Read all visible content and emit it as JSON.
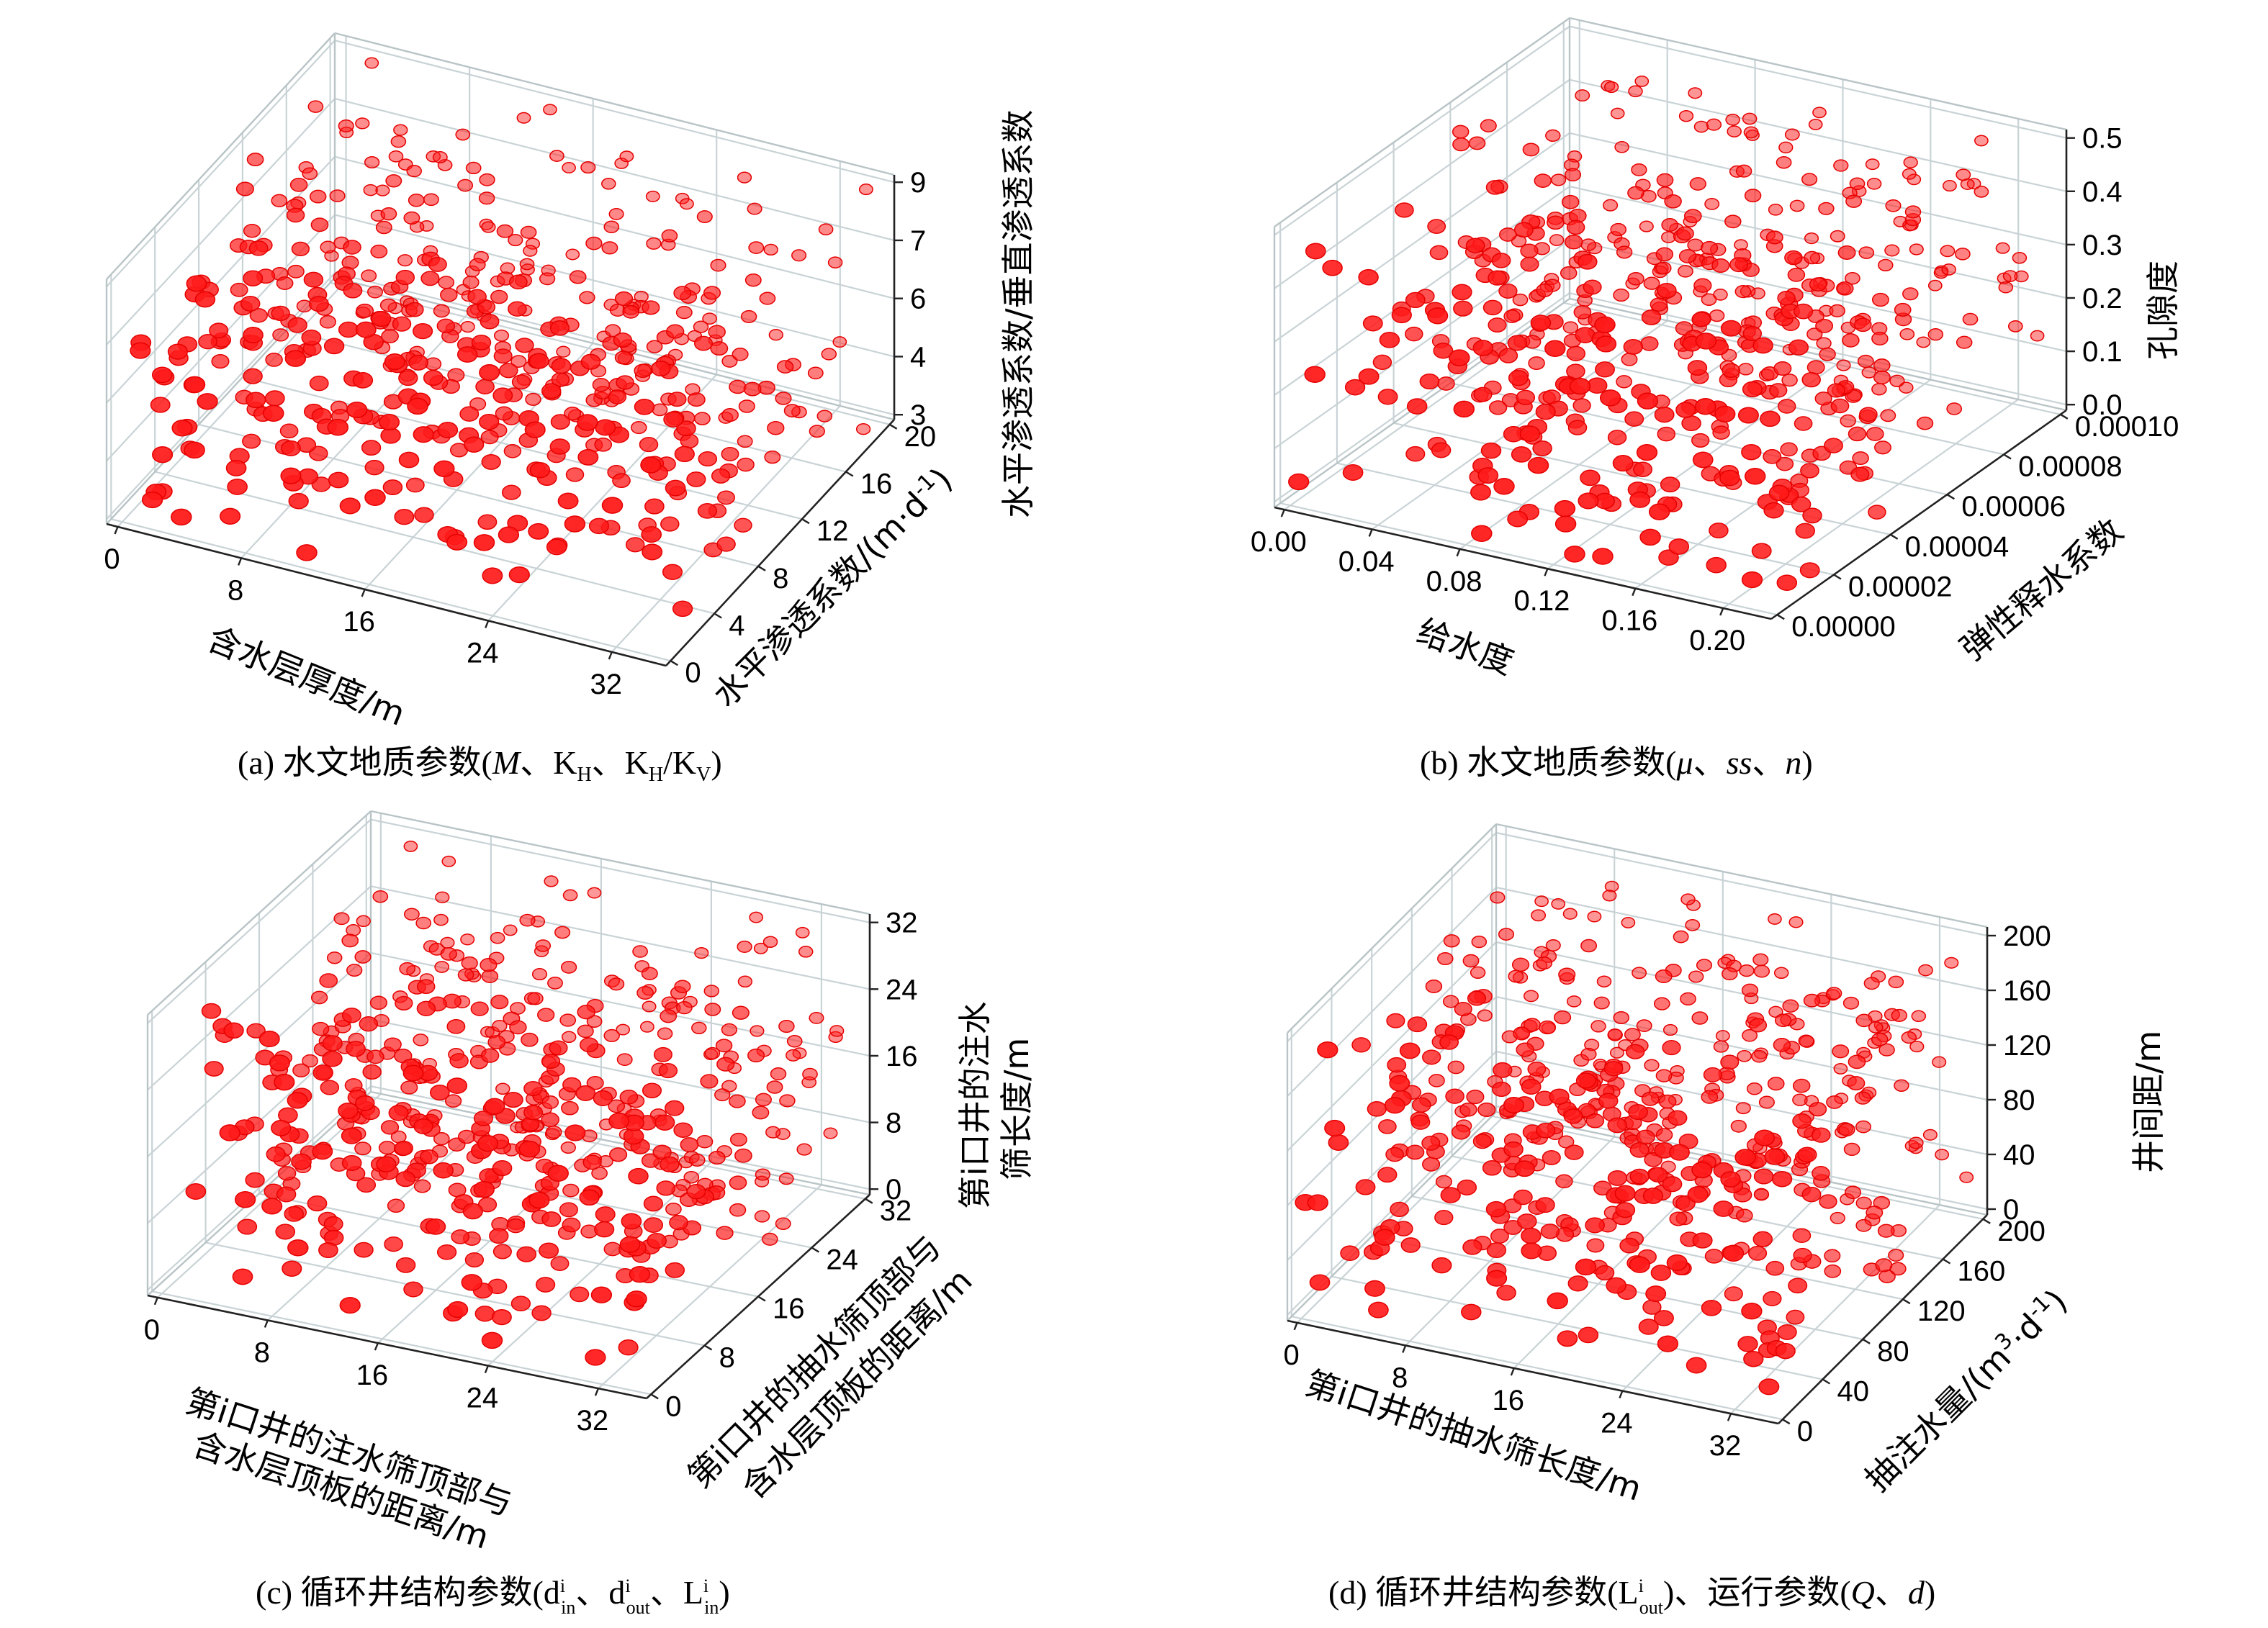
{
  "chart_data": [
    {
      "type": "scatter",
      "subtype": "3d",
      "caption": "(a) 水文地质参数(M、KH、KH/KV)",
      "xlabel": "含水层厚度/m",
      "ylabel": "水平渗透系数/(m·d⁻¹)",
      "zlabel": "水平渗透系数/垂直渗透系数",
      "xlim": [
        0,
        36
      ],
      "ylim": [
        0,
        20
      ],
      "zlim": [
        3,
        9.5
      ],
      "xticks": [
        "0",
        "8",
        "16",
        "24",
        "32"
      ],
      "yticks": [
        "0",
        "4",
        "8",
        "12",
        "16",
        "20"
      ],
      "zticks": [
        "3",
        "4",
        "6",
        "7",
        "9"
      ],
      "n_points": 500,
      "point_color": "#ff1a1a"
    },
    {
      "type": "scatter",
      "subtype": "3d",
      "caption": "(b) 水文地质参数(μ、ss、n)",
      "xlabel": "给水度",
      "ylabel": "弹性释水系数",
      "zlabel": "孔隙度",
      "xlim": [
        0,
        0.2
      ],
      "ylim": [
        0,
        0.0001
      ],
      "zlim": [
        0,
        0.5
      ],
      "xticks": [
        "0.00",
        "0.04",
        "0.08",
        "0.12",
        "0.16",
        "0.20"
      ],
      "yticks": [
        "0.00000",
        "0.00002",
        "0.00004",
        "0.00006",
        "0.00008",
        "0.00010"
      ],
      "zticks": [
        "0.0",
        "0.1",
        "0.2",
        "0.3",
        "0.4",
        "0.5"
      ],
      "n_points": 500,
      "point_color": "#ff1a1a"
    },
    {
      "type": "scatter",
      "subtype": "3d",
      "caption": "(c) 循环井结构参数(dⁱin、dⁱout、Lⁱin)",
      "xlabel": "第i口井的注水筛顶部与含水层顶板的距离/m",
      "ylabel": "第i口井的抽水筛顶部与含水层顶板的距离/m",
      "zlabel": "第i口井的注水筛长度/m",
      "xlim": [
        0,
        36
      ],
      "ylim": [
        0,
        36
      ],
      "zlim": [
        0,
        36
      ],
      "xticks": [
        "0",
        "8",
        "16",
        "24",
        "32"
      ],
      "yticks": [
        "0",
        "8",
        "16",
        "24",
        "32"
      ],
      "zticks": [
        "0",
        "8",
        "16",
        "24",
        "32"
      ],
      "n_points": 500,
      "point_color": "#ff1a1a"
    },
    {
      "type": "scatter",
      "subtype": "3d",
      "caption": "(d) 循环井结构参数(Lⁱout)、运行参数(Q、d)",
      "xlabel": "第i口井的抽水筛长度/m",
      "ylabel": "抽注水量/(m³·d⁻¹)",
      "zlabel": "井间距/m",
      "xlim": [
        0,
        36
      ],
      "ylim": [
        0,
        200
      ],
      "zlim": [
        0,
        200
      ],
      "xticks": [
        "0",
        "8",
        "16",
        "24",
        "32"
      ],
      "yticks": [
        "0",
        "40",
        "80",
        "120",
        "160",
        "200"
      ],
      "zticks": [
        "0",
        "40",
        "80",
        "120",
        "160",
        "200"
      ],
      "n_points": 500,
      "point_color": "#ff1a1a"
    }
  ],
  "captions": {
    "a_prefix": "(a) 水文地质参数(",
    "a_M": "M",
    "a_sep1": "、K",
    "a_H1": "H",
    "a_sep2": "、K",
    "a_H2": "H",
    "a_slash": "/K",
    "a_V": "V",
    "a_close": ")",
    "b_prefix": "(b) 水文地质参数(",
    "b_mu": "μ",
    "b_sep1": "、",
    "b_ss": "ss",
    "b_sep2": "、",
    "b_n": "n",
    "b_close": ")",
    "c_prefix": "(c) 循环井结构参数(d",
    "c_i1": "i",
    "c_in1": "in",
    "c_sep1": "、d",
    "c_i2": "i",
    "c_out": "out",
    "c_sep2": "、L",
    "c_i3": "i",
    "c_in2": "in",
    "c_close": ")",
    "d_prefix": "(d) 循环井结构参数(L",
    "d_i": "i",
    "d_out": "out",
    "d_mid": ")、运行参数(",
    "d_Q": "Q",
    "d_sep": "、",
    "d_d": "d",
    "d_close": ")"
  },
  "axis_text": {
    "a_x": "含水层厚度/m",
    "a_y": "水平渗透系数/(m·d",
    "a_y_sup": "-1",
    "a_y_close": ")",
    "a_z": "水平渗透系数/垂直渗透系数",
    "b_x": "给水度",
    "b_y": "弹性释水系数",
    "b_z": "孔隙度",
    "c_x1": "第i口井的注水筛顶部与",
    "c_x2": "含水层顶板的距离/m",
    "c_y1": "第i口井的抽水筛顶部与",
    "c_y2": "含水层顶板的距离/m",
    "c_z1": "第i口井的注水",
    "c_z2": "筛长度/m",
    "d_x": "第i口井的抽水筛长度/m",
    "d_y": "抽注水量/(m",
    "d_y_sup1": "3",
    "d_y_mid": "·d",
    "d_y_sup2": "-1",
    "d_y_close": ")",
    "d_z": "井间距/m"
  }
}
